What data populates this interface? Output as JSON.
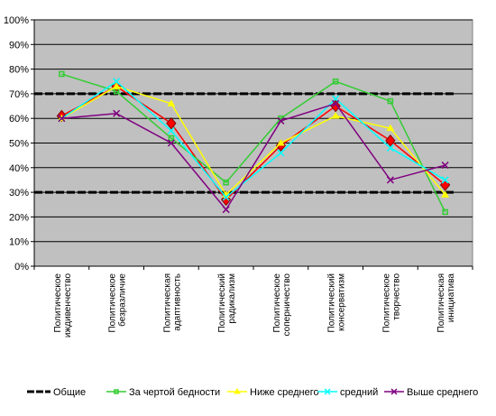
{
  "chart_data": {
    "type": "line",
    "ylim": [
      0,
      100
    ],
    "ytick_suffix": "%",
    "yticks": [
      0,
      10,
      20,
      30,
      40,
      50,
      60,
      70,
      80,
      90,
      100
    ],
    "grid": true,
    "legend_position": "bottom",
    "categories": [
      [
        "Политическое",
        "иждивенчество"
      ],
      [
        "Политическое",
        "безразличие"
      ],
      [
        "Политическая",
        "адаптивность"
      ],
      [
        "Политический",
        "радикализм"
      ],
      [
        "Политическое",
        "соперничество"
      ],
      [
        "Политический",
        "консерватизм"
      ],
      [
        "Политическое",
        "творчество"
      ],
      [
        "Политическая",
        "инициатива"
      ]
    ],
    "reference_lines": [
      30,
      70
    ],
    "series": [
      {
        "name": "Общие",
        "color": "#ff0000",
        "marker": "diamond",
        "values": [
          61,
          73,
          58,
          27,
          49,
          65,
          51,
          33
        ]
      },
      {
        "name": "За чертой бедности",
        "color": "#33cc33",
        "marker": "square",
        "values": [
          78,
          71,
          52,
          34,
          60,
          75,
          67,
          22
        ]
      },
      {
        "name": "Ниже среднего",
        "color": "#ffff00",
        "marker": "triangle",
        "values": [
          60,
          73,
          66,
          29,
          50,
          61,
          56,
          29
        ]
      },
      {
        "name": "средний",
        "color": "#00ffff",
        "marker": "x",
        "values": [
          60,
          75,
          55,
          28,
          46,
          68,
          48,
          35
        ]
      },
      {
        "name": "Выше среднего",
        "color": "#800080",
        "marker": "x",
        "values": [
          60,
          62,
          50,
          23,
          59,
          66,
          35,
          41
        ]
      }
    ],
    "legend": [
      {
        "name": "Общие",
        "style": "dash",
        "color": "#000000"
      },
      {
        "name": "За чертой бедности",
        "color": "#33cc33",
        "marker": "square"
      },
      {
        "name": "Ниже среднего",
        "color": "#ffff00",
        "marker": "triangle"
      },
      {
        "name": "средний",
        "color": "#00ffff",
        "marker": "x"
      },
      {
        "name": "Выше среднего",
        "color": "#800080",
        "marker": "x"
      }
    ]
  }
}
